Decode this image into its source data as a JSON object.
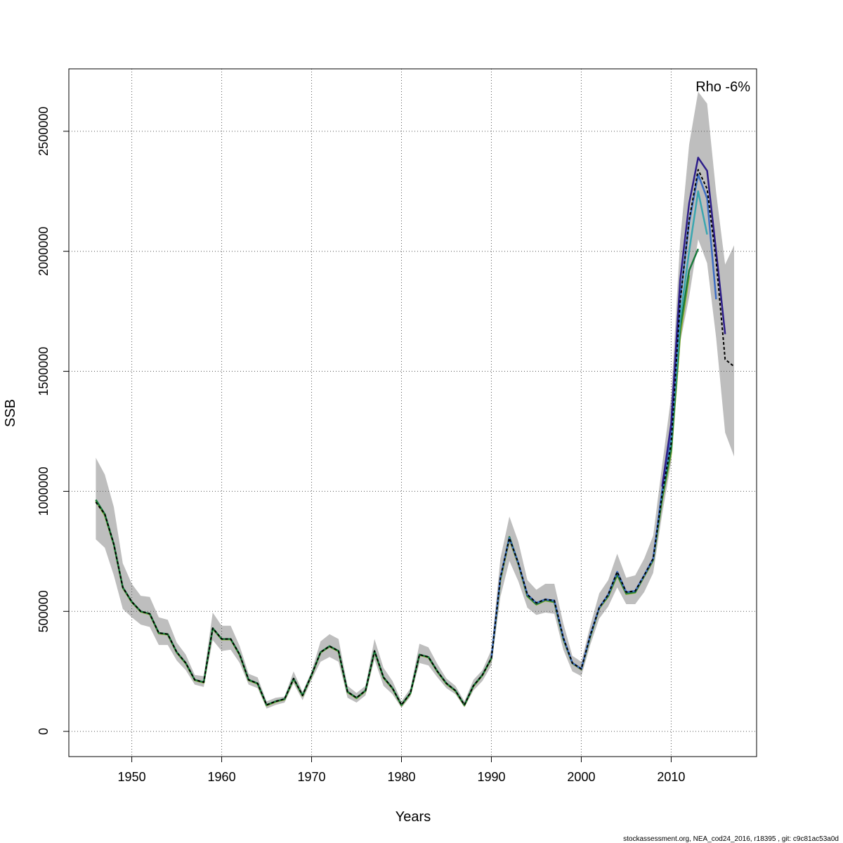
{
  "chart_data": {
    "type": "line",
    "title": "",
    "xlabel": "Years",
    "ylabel": "SSB",
    "xlim": [
      1943,
      2019.5
    ],
    "ylim": [
      -105000,
      2760000
    ],
    "grid": true,
    "x_ticks": [
      1950,
      1960,
      1970,
      1980,
      1990,
      2000,
      2010
    ],
    "x_tick_labels": [
      "1950",
      "1960",
      "1970",
      "1980",
      "1990",
      "2000",
      "2010"
    ],
    "y_ticks": [
      0,
      500000,
      1000000,
      1500000,
      2000000,
      2500000
    ],
    "y_tick_labels": [
      "0",
      "500000",
      "1000000",
      "1500000",
      "2000000",
      "2500000"
    ],
    "annotation": "Rho -6%",
    "footer": "stockassessment.org, NEA_cod24_2016, r18395 , git: c9c81ac53a0d",
    "confidence_band": {
      "color": "#bebebe",
      "x": [
        1946,
        1947,
        1948,
        1949,
        1950,
        1951,
        1952,
        1953,
        1954,
        1955,
        1956,
        1957,
        1958,
        1959,
        1960,
        1961,
        1962,
        1963,
        1964,
        1965,
        1966,
        1967,
        1968,
        1969,
        1970,
        1971,
        1972,
        1973,
        1974,
        1975,
        1976,
        1977,
        1978,
        1979,
        1980,
        1981,
        1982,
        1983,
        1984,
        1985,
        1986,
        1987,
        1988,
        1989,
        1990,
        1991,
        1992,
        1993,
        1994,
        1995,
        1996,
        1997,
        1998,
        1999,
        2000,
        2001,
        2002,
        2003,
        2004,
        2005,
        2006,
        2007,
        2008,
        2009,
        2010,
        2011,
        2012,
        2013,
        2014,
        2015,
        2016,
        2017
      ],
      "lower": [
        800000,
        765000,
        650000,
        510000,
        475000,
        445000,
        435000,
        360000,
        360000,
        295000,
        255000,
        195000,
        185000,
        380000,
        335000,
        340000,
        285000,
        195000,
        180000,
        95000,
        110000,
        120000,
        200000,
        130000,
        215000,
        290000,
        310000,
        290000,
        140000,
        120000,
        150000,
        300000,
        190000,
        155000,
        98000,
        145000,
        285000,
        275000,
        225000,
        180000,
        155000,
        100000,
        170000,
        210000,
        275000,
        560000,
        710000,
        625000,
        515000,
        485000,
        495000,
        490000,
        340000,
        250000,
        230000,
        360000,
        470000,
        520000,
        600000,
        530000,
        530000,
        580000,
        660000,
        905000,
        1120000,
        1620000,
        1810000,
        2050000,
        1950000,
        1640000,
        1245000,
        1145000
      ],
      "upper": [
        1140000,
        1070000,
        935000,
        700000,
        615000,
        565000,
        560000,
        475000,
        465000,
        370000,
        320000,
        235000,
        230000,
        495000,
        440000,
        440000,
        355000,
        240000,
        225000,
        125000,
        140000,
        145000,
        250000,
        165000,
        250000,
        375000,
        405000,
        385000,
        190000,
        160000,
        190000,
        385000,
        265000,
        210000,
        125000,
        180000,
        365000,
        350000,
        280000,
        220000,
        190000,
        125000,
        215000,
        255000,
        340000,
        720000,
        895000,
        790000,
        630000,
        590000,
        615000,
        615000,
        450000,
        315000,
        290000,
        440000,
        575000,
        630000,
        740000,
        640000,
        650000,
        720000,
        815000,
        1110000,
        1395000,
        2045000,
        2445000,
        2665000,
        2615000,
        2245000,
        1945000,
        2025000
      ]
    },
    "series": [
      {
        "color": "#000000",
        "dashed": true,
        "x": [
          1946,
          1947,
          1948,
          1949,
          1950,
          1951,
          1952,
          1953,
          1954,
          1955,
          1956,
          1957,
          1958,
          1959,
          1960,
          1961,
          1962,
          1963,
          1964,
          1965,
          1966,
          1967,
          1968,
          1969,
          1970,
          1971,
          1972,
          1973,
          1974,
          1975,
          1976,
          1977,
          1978,
          1979,
          1980,
          1981,
          1982,
          1983,
          1984,
          1985,
          1986,
          1987,
          1988,
          1989,
          1990,
          1991,
          1992,
          1993,
          1994,
          1995,
          1996,
          1997,
          1998,
          1999,
          2000,
          2001,
          2002,
          2003,
          2004,
          2005,
          2006,
          2007,
          2008,
          2009,
          2010,
          2011,
          2012,
          2013,
          2014,
          2015,
          2016,
          2017
        ],
        "y": [
          955000,
          905000,
          780000,
          600000,
          540000,
          500000,
          490000,
          410000,
          405000,
          330000,
          285000,
          215000,
          205000,
          430000,
          385000,
          385000,
          320000,
          215000,
          200000,
          110000,
          125000,
          135000,
          220000,
          150000,
          235000,
          330000,
          355000,
          335000,
          165000,
          140000,
          170000,
          335000,
          225000,
          180000,
          110000,
          160000,
          320000,
          310000,
          250000,
          200000,
          170000,
          110000,
          190000,
          235000,
          305000,
          640000,
          805000,
          700000,
          570000,
          535000,
          550000,
          545000,
          390000,
          285000,
          260000,
          400000,
          515000,
          570000,
          665000,
          580000,
          585000,
          650000,
          720000,
          990000,
          1200000,
          1790000,
          2130000,
          2340000,
          2260000,
          1960000,
          1550000,
          1520000
        ]
      },
      {
        "color": "#2e1e8a",
        "dashed": false,
        "x": [
          2009,
          2010,
          2011,
          2012,
          2013,
          2014,
          2015,
          2016
        ],
        "y": [
          1020000,
          1280000,
          1880000,
          2200000,
          2390000,
          2335000,
          2000000,
          1655000
        ]
      },
      {
        "color": "#3e6ec4",
        "dashed": false,
        "x": [
          1990,
          1991,
          1992,
          1993,
          1994,
          1995,
          1996,
          1997,
          1998,
          1999,
          2000,
          2001,
          2002,
          2003,
          2004,
          2005,
          2006,
          2007,
          2008,
          2009,
          2010,
          2011,
          2012,
          2013,
          2014,
          2015
        ],
        "y": [
          305000,
          640000,
          805000,
          700000,
          570000,
          535000,
          550000,
          545000,
          390000,
          285000,
          260000,
          400000,
          515000,
          570000,
          665000,
          580000,
          585000,
          650000,
          720000,
          1005000,
          1245000,
          1800000,
          2120000,
          2320000,
          2220000,
          1800000
        ]
      },
      {
        "color": "#3aa6b0",
        "dashed": false,
        "x": [
          2009,
          2010,
          2011,
          2012,
          2013,
          2014
        ],
        "y": [
          990000,
          1210000,
          1720000,
          2000000,
          2250000,
          2070000
        ]
      },
      {
        "color": "#1a7a3c",
        "dashed": false,
        "x": [
          1946,
          1947,
          1948,
          1949,
          1950,
          1951,
          1952,
          1953,
          1954,
          1955,
          1956,
          1957,
          1958,
          1959,
          1960,
          1961,
          1962,
          1963,
          1964,
          1965,
          1966,
          1967,
          1968,
          1969,
          1970,
          1971,
          1972,
          1973,
          1974,
          1975,
          1976,
          1977,
          1978,
          1979,
          1980,
          1981,
          1982,
          1983,
          1984,
          1985,
          1986,
          1987,
          1988,
          1989,
          1990,
          1991,
          1992,
          1993,
          1994,
          1995,
          1996,
          1997,
          1998,
          1999,
          2000,
          2001,
          2002,
          2003,
          2004,
          2005,
          2006,
          2007,
          2008,
          2009,
          2010,
          2011,
          2012,
          2013
        ],
        "y": [
          965000,
          905000,
          780000,
          600000,
          540000,
          500000,
          490000,
          410000,
          405000,
          330000,
          285000,
          215000,
          205000,
          430000,
          385000,
          385000,
          320000,
          215000,
          200000,
          110000,
          125000,
          135000,
          220000,
          150000,
          235000,
          330000,
          355000,
          335000,
          165000,
          140000,
          170000,
          335000,
          225000,
          180000,
          110000,
          160000,
          320000,
          310000,
          250000,
          200000,
          170000,
          110000,
          190000,
          235000,
          305000,
          635000,
          810000,
          700000,
          565000,
          530000,
          548000,
          540000,
          385000,
          285000,
          260000,
          395000,
          515000,
          565000,
          655000,
          575000,
          580000,
          648000,
          715000,
          975000,
          1175000,
          1680000,
          1920000,
          2010000
        ]
      },
      {
        "color": "#8fb030",
        "dashed": false,
        "x": [
          1946,
          1947,
          1948,
          1949,
          1950,
          1951,
          1952,
          1953,
          1954,
          1955,
          1956,
          1957,
          1958,
          1959,
          1960,
          1961,
          1962,
          1963,
          1964,
          1965,
          1966,
          1967,
          1968,
          1969,
          1970,
          1971,
          1972,
          1973,
          1974,
          1975,
          1976,
          1977,
          1978,
          1979,
          1980,
          1981,
          1982,
          1983,
          1984,
          1985,
          1986,
          1987,
          1988,
          1989,
          1990,
          1991,
          1992,
          1993,
          1994,
          1995,
          1996,
          1997,
          1998,
          1999,
          2000,
          2001,
          2002,
          2003,
          2004,
          2005,
          2006,
          2007,
          2008,
          2009,
          2010,
          2011,
          2012
        ],
        "y": [
          960000,
          900000,
          778000,
          598000,
          538000,
          498000,
          488000,
          408000,
          403000,
          328000,
          283000,
          213000,
          203000,
          428000,
          383000,
          383000,
          318000,
          213000,
          198000,
          108000,
          123000,
          133000,
          218000,
          148000,
          233000,
          328000,
          353000,
          333000,
          163000,
          138000,
          168000,
          333000,
          223000,
          178000,
          108000,
          158000,
          318000,
          308000,
          248000,
          198000,
          168000,
          108000,
          188000,
          233000,
          303000,
          630000,
          800000,
          695000,
          562000,
          528000,
          545000,
          538000,
          383000,
          283000,
          258000,
          393000,
          512000,
          562000,
          650000,
          572000,
          578000,
          645000,
          712000,
          965000,
          1160000,
          1650000,
          1900000
        ]
      }
    ]
  }
}
